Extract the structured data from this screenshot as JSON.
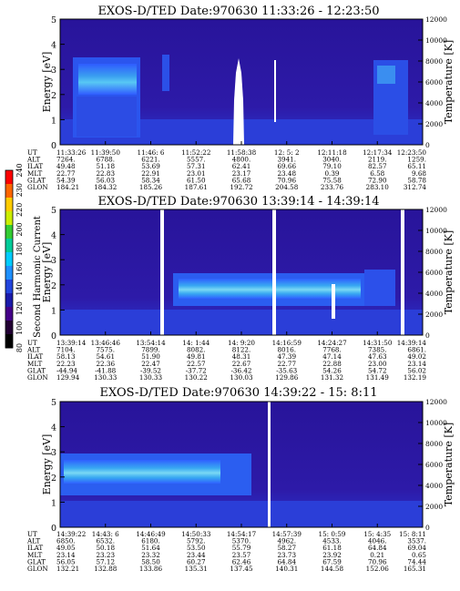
{
  "figure": {
    "y_axis_left": "Energy [eV]",
    "y_axis_right": "Temperature [K]",
    "colorbar_label": "Second Harmonic Current"
  },
  "colorbar": {
    "ticks": [
      "240",
      "230",
      "220",
      "200",
      "180",
      "160",
      "140",
      "120",
      "100",
      "80"
    ],
    "colors": [
      "#ff0000",
      "#ff6600",
      "#ffcc00",
      "#ccee00",
      "#33cc33",
      "#00cc99",
      "#00ccff",
      "#1e90ff",
      "#2244dd",
      "#1a1aaa",
      "#440088",
      "#220033",
      "#000000"
    ]
  },
  "row_labels": [
    "UT",
    "ALT",
    "ILAT",
    "MLT",
    "GLAT",
    "GLON"
  ],
  "chart_data": [
    {
      "type": "heatmap",
      "title": "EXOS-D/TED   Date:970630   11:33:26 - 12:23:50",
      "ylabel": "Energy [eV]",
      "y2label": "Temperature [K]",
      "ylim": [
        0,
        5
      ],
      "y2lim": [
        0,
        12000
      ],
      "yticks": [
        "0",
        "1",
        "2",
        "3",
        "4",
        "5"
      ],
      "y2ticks": [
        "0",
        "2000",
        "4000",
        "6000",
        "8000",
        "10000",
        "12000"
      ],
      "x_columns": [
        {
          "UT": "11:33:26",
          "ALT": "7264.",
          "ILAT": "49.48",
          "MLT": "22.77",
          "GLAT": "54.39",
          "GLON": "184.21"
        },
        {
          "UT": "11:39:50",
          "ALT": "6788.",
          "ILAT": "51.18",
          "MLT": "22.83",
          "GLAT": "56.03",
          "GLON": "184.32"
        },
        {
          "UT": "11:46: 6",
          "ALT": "6221.",
          "ILAT": "53.69",
          "MLT": "22.91",
          "GLAT": "58.34",
          "GLON": "185.26"
        },
        {
          "UT": "11:52:22",
          "ALT": "5557.",
          "ILAT": "57.31",
          "MLT": "23.01",
          "GLAT": "61.50",
          "GLON": "187.61"
        },
        {
          "UT": "11:58:38",
          "ALT": "4800.",
          "ILAT": "62.41",
          "MLT": "23.17",
          "GLAT": "65.68",
          "GLON": "192.72"
        },
        {
          "UT": "12: 5: 2",
          "ALT": "3941.",
          "ILAT": "69.66",
          "MLT": "23.48",
          "GLAT": "70.96",
          "GLON": "204.58"
        },
        {
          "UT": "12:11:18",
          "ALT": "3040.",
          "ILAT": "79.10",
          "MLT": "0.39",
          "GLAT": "75.58",
          "GLON": "233.76"
        },
        {
          "UT": "12:17:34",
          "ALT": "2119.",
          "ILAT": "82.57",
          "MLT": "6.58",
          "GLAT": "72.90",
          "GLON": "283.10"
        },
        {
          "UT": "12:23:50",
          "ALT": "1259.",
          "ILAT": "65.11",
          "MLT": "9.68",
          "GLAT": "58.78",
          "GLON": "312.74"
        }
      ]
    },
    {
      "type": "heatmap",
      "title": "EXOS-D/TED   Date:970630   13:39:14 - 14:39:14",
      "ylabel": "Energy [eV]",
      "y2label": "Temperature [K]",
      "ylim": [
        0,
        5
      ],
      "y2lim": [
        0,
        12000
      ],
      "yticks": [
        "0",
        "1",
        "2",
        "3",
        "4",
        "5"
      ],
      "y2ticks": [
        "0",
        "2000",
        "4000",
        "6000",
        "8000",
        "10000",
        "12000"
      ],
      "x_columns": [
        {
          "UT": "13:39:14",
          "ALT": "7104.",
          "ILAT": "58.13",
          "MLT": "22.23",
          "GLAT": "-44.94",
          "GLON": "129.94"
        },
        {
          "UT": "13:46:46",
          "ALT": "7575.",
          "ILAT": "54.61",
          "MLT": "22.36",
          "GLAT": "-41.88",
          "GLON": "130.33"
        },
        {
          "UT": "13:54:14",
          "ALT": "7899.",
          "ILAT": "51.90",
          "MLT": "22.47",
          "GLAT": "-39.52",
          "GLON": "130.33"
        },
        {
          "UT": "14: 1:44",
          "ALT": "8082.",
          "ILAT": "49.81",
          "MLT": "22.57",
          "GLAT": "-37.72",
          "GLON": "130.22"
        },
        {
          "UT": "14: 9:20",
          "ALT": "8122.",
          "ILAT": "48.31",
          "MLT": "22.67",
          "GLAT": "-36.42",
          "GLON": "130.03"
        },
        {
          "UT": "14:16:59",
          "ALT": "8016.",
          "ILAT": "47.39",
          "MLT": "22.77",
          "GLAT": "-35.63",
          "GLON": "129.86"
        },
        {
          "UT": "14:24:27",
          "ALT": "7768.",
          "ILAT": "47.14",
          "MLT": "22.88",
          "GLAT": "54.26",
          "GLON": "131.32"
        },
        {
          "UT": "14:31:50",
          "ALT": "7385.",
          "ILAT": "47.63",
          "MLT": "23.00",
          "GLAT": "54.72",
          "GLON": "131.49"
        },
        {
          "UT": "14:39:14",
          "ALT": "6861.",
          "ILAT": "49.02",
          "MLT": "23.14",
          "GLAT": "56.02",
          "GLON": "132.19"
        }
      ]
    },
    {
      "type": "heatmap",
      "title": "EXOS-D/TED   Date:970630   14:39:22 - 15: 8:11",
      "ylabel": "Energy [eV]",
      "y2label": "Temperature [K]",
      "ylim": [
        0,
        5
      ],
      "y2lim": [
        0,
        12000
      ],
      "yticks": [
        "0",
        "1",
        "2",
        "3",
        "4",
        "5"
      ],
      "y2ticks": [
        "0",
        "2000",
        "4000",
        "6000",
        "8000",
        "10000",
        "12000"
      ],
      "x_columns": [
        {
          "UT": "14:39:22",
          "ALT": "6850.",
          "ILAT": "49.05",
          "MLT": "23.14",
          "GLAT": "56.05",
          "GLON": "132.21"
        },
        {
          "UT": "14:43: 6",
          "ALT": "6532.",
          "ILAT": "50.18",
          "MLT": "23.23",
          "GLAT": "57.12",
          "GLON": "132.88"
        },
        {
          "UT": "14:46:49",
          "ALT": "6180.",
          "ILAT": "51.64",
          "MLT": "23.32",
          "GLAT": "58.50",
          "GLON": "133.86"
        },
        {
          "UT": "14:50:33",
          "ALT": "5792.",
          "ILAT": "53.50",
          "MLT": "23.44",
          "GLAT": "60.27",
          "GLON": "135.31"
        },
        {
          "UT": "14:54:17",
          "ALT": "5370.",
          "ILAT": "55.79",
          "MLT": "23.57",
          "GLAT": "62.46",
          "GLON": "137.45"
        },
        {
          "UT": "14:57:39",
          "ALT": "4962.",
          "ILAT": "58.27",
          "MLT": "23.73",
          "GLAT": "64.84",
          "GLON": "140.31"
        },
        {
          "UT": "15: 0:59",
          "ALT": "4533.",
          "ILAT": "61.18",
          "MLT": "23.92",
          "GLAT": "67.59",
          "GLON": "144.58"
        },
        {
          "UT": "15: 4:35",
          "ALT": "4046.",
          "ILAT": "64.84",
          "MLT": "0.21",
          "GLAT": "70.96",
          "GLON": "152.06"
        },
        {
          "UT": "15: 8:11",
          "ALT": "3537.",
          "ILAT": "69.04",
          "MLT": "0.65",
          "GLAT": "74.44",
          "GLON": "165.31"
        }
      ]
    }
  ]
}
